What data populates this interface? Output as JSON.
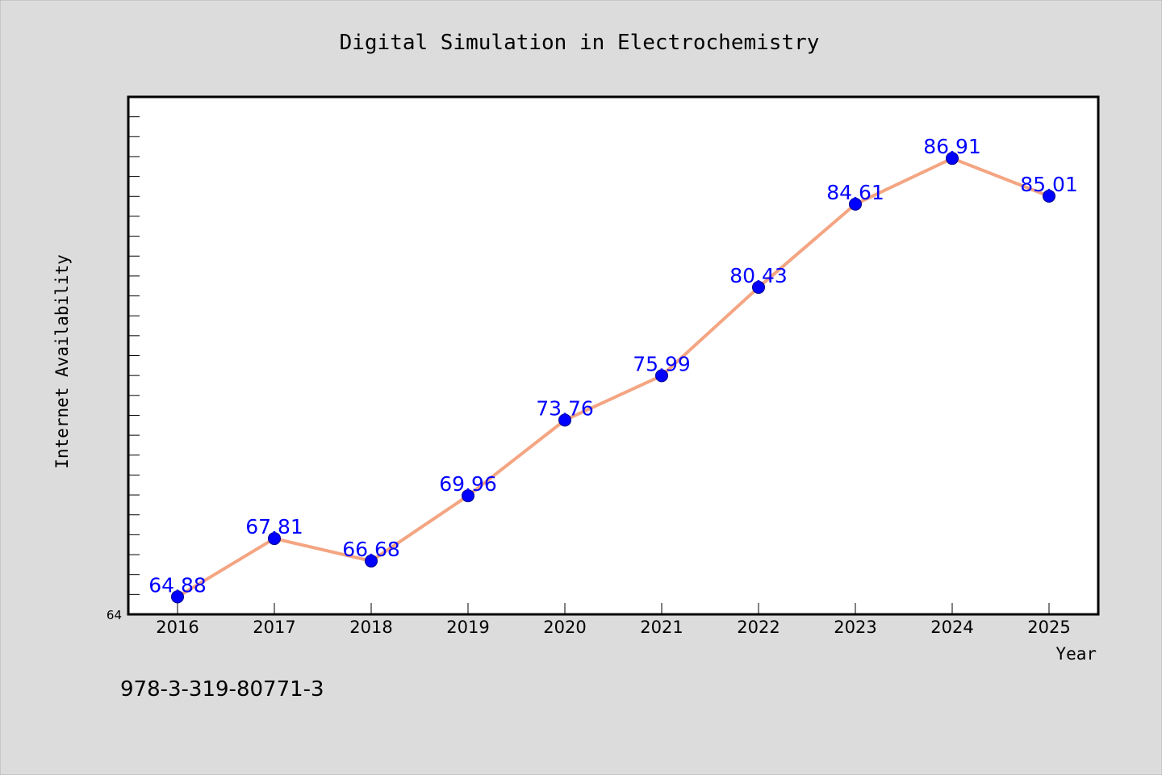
{
  "footer_text": "978-3-319-80771-3",
  "chart_data": {
    "type": "line",
    "title": "Digital Simulation in Electrochemistry",
    "xlabel": "Year",
    "ylabel": "Internet Availability",
    "categories": [
      "2016",
      "2017",
      "2018",
      "2019",
      "2020",
      "2021",
      "2022",
      "2023",
      "2024",
      "2025"
    ],
    "values": [
      64.88,
      67.81,
      66.68,
      69.96,
      73.76,
      75.99,
      80.43,
      84.61,
      86.91,
      85.01
    ],
    "value_labels": [
      "64.88",
      "67.81",
      "66.68",
      "69.96",
      "73.76",
      "75.99",
      "80.43",
      "84.61",
      "86.91",
      "85.01"
    ],
    "ylim": [
      64,
      90
    ],
    "y_tick_labels": [
      "64"
    ],
    "grid": false,
    "legend": "none",
    "colors": {
      "background": "#dcdcdc",
      "plot_background": "#ffffff",
      "line": "#f4a582",
      "marker": "#0000ff",
      "data_label": "#0000ff"
    }
  }
}
